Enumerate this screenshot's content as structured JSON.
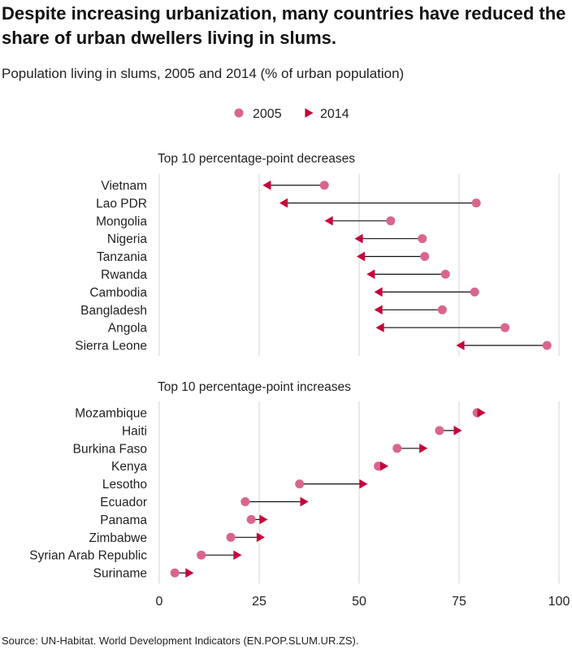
{
  "title": "Despite increasing urbanization, many countries have reduced the share of urban dwellers living in slums.",
  "subtitle": "Population living in slums, 2005 and 2014 (% of urban population)",
  "source": "Source: UN-Habitat. World Development Indicators (EN.POP.SLUM.UR.ZS).",
  "colors": {
    "series_2005": "#d9658f",
    "series_2014": "#c8003a",
    "connector": "#111111",
    "grid": "#e2e2e2"
  },
  "chart_data": {
    "type": "dumbbell",
    "legend": {
      "placement": "top-center",
      "entries": [
        {
          "label": "2005",
          "marker": "circle"
        },
        {
          "label": "2014",
          "marker": "triangle"
        }
      ]
    },
    "x_axis": {
      "range": [
        0,
        100
      ],
      "ticks": [
        0,
        25,
        50,
        75,
        100
      ],
      "grid": true
    },
    "panels": [
      {
        "title": "Top 10 percentage-point decreases",
        "rows": [
          {
            "country": "Vietnam",
            "v2005": 41.3,
            "v2014": 27.2
          },
          {
            "country": "Lao PDR",
            "v2005": 79.3,
            "v2014": 31.4
          },
          {
            "country": "Mongolia",
            "v2005": 57.9,
            "v2014": 42.7
          },
          {
            "country": "Nigeria",
            "v2005": 65.8,
            "v2014": 50.2
          },
          {
            "country": "Tanzania",
            "v2005": 66.4,
            "v2014": 50.7
          },
          {
            "country": "Rwanda",
            "v2005": 71.6,
            "v2014": 53.2
          },
          {
            "country": "Cambodia",
            "v2005": 78.9,
            "v2014": 55.1
          },
          {
            "country": "Bangladesh",
            "v2005": 70.8,
            "v2014": 55.1
          },
          {
            "country": "Angola",
            "v2005": 86.5,
            "v2014": 55.5
          },
          {
            "country": "Sierra Leone",
            "v2005": 97.0,
            "v2014": 75.6
          }
        ]
      },
      {
        "title": "Top 10 percentage-point increases",
        "rows": [
          {
            "country": "Mozambique",
            "v2005": 79.5,
            "v2014": 80.3
          },
          {
            "country": "Haiti",
            "v2005": 70.1,
            "v2014": 74.4
          },
          {
            "country": "Burkina Faso",
            "v2005": 59.5,
            "v2014": 65.8
          },
          {
            "country": "Kenya",
            "v2005": 54.8,
            "v2014": 56.0
          },
          {
            "country": "Lesotho",
            "v2005": 35.1,
            "v2014": 50.8
          },
          {
            "country": "Ecuador",
            "v2005": 21.5,
            "v2014": 36.0
          },
          {
            "country": "Panama",
            "v2005": 23.0,
            "v2014": 25.8
          },
          {
            "country": "Zimbabwe",
            "v2005": 17.9,
            "v2014": 25.1
          },
          {
            "country": "Syrian Arab Republic",
            "v2005": 10.5,
            "v2014": 19.3
          },
          {
            "country": "Suriname",
            "v2005": 3.9,
            "v2014": 7.3
          }
        ]
      }
    ]
  }
}
